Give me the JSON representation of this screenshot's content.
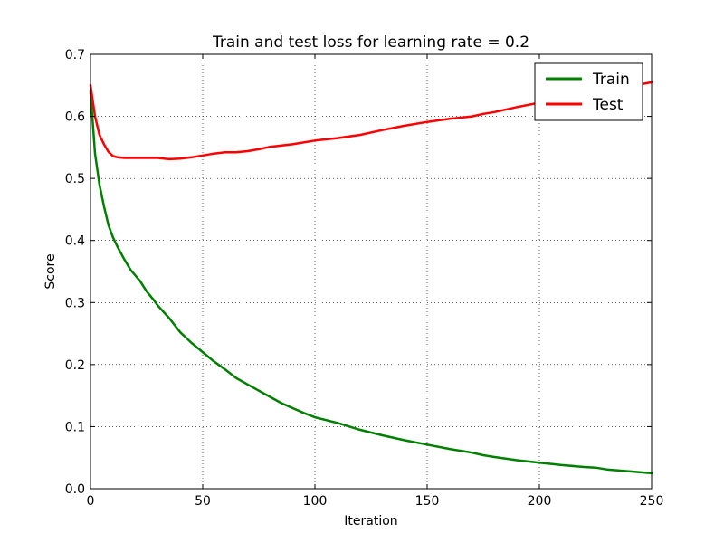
{
  "chart_data": {
    "type": "line",
    "title": "Train and test loss for learning rate = 0.2",
    "xlabel": "Iteration",
    "ylabel": "Score",
    "xlim": [
      0,
      250
    ],
    "ylim": [
      0,
      0.7
    ],
    "xticks": [
      0,
      50,
      100,
      150,
      200,
      250
    ],
    "yticks": [
      0.0,
      0.1,
      0.2,
      0.3,
      0.4,
      0.5,
      0.6,
      0.7
    ],
    "xtick_labels": [
      "0",
      "50",
      "100",
      "150",
      "200",
      "250"
    ],
    "ytick_labels": [
      "0.0",
      "0.1",
      "0.2",
      "0.3",
      "0.4",
      "0.5",
      "0.6",
      "0.7"
    ],
    "grid": true,
    "legend_position": "top-right",
    "series": [
      {
        "name": "Train",
        "color": "#008000",
        "x": [
          0,
          2,
          4,
          6,
          8,
          10,
          12,
          15,
          18,
          22,
          25,
          28,
          30,
          35,
          40,
          45,
          50,
          55,
          60,
          65,
          70,
          75,
          80,
          85,
          90,
          95,
          100,
          110,
          120,
          130,
          140,
          150,
          160,
          170,
          175,
          180,
          190,
          200,
          210,
          220,
          225,
          230,
          240,
          250
        ],
        "y": [
          0.64,
          0.54,
          0.49,
          0.455,
          0.425,
          0.405,
          0.39,
          0.37,
          0.352,
          0.335,
          0.318,
          0.305,
          0.295,
          0.275,
          0.252,
          0.235,
          0.22,
          0.205,
          0.192,
          0.178,
          0.168,
          0.158,
          0.148,
          0.138,
          0.13,
          0.122,
          0.115,
          0.106,
          0.095,
          0.086,
          0.078,
          0.071,
          0.064,
          0.058,
          0.054,
          0.051,
          0.046,
          0.042,
          0.038,
          0.035,
          0.034,
          0.031,
          0.028,
          0.025
        ]
      },
      {
        "name": "Test",
        "color": "#ff0000",
        "x": [
          0,
          2,
          4,
          6,
          8,
          10,
          12,
          15,
          20,
          25,
          30,
          35,
          40,
          45,
          50,
          55,
          60,
          65,
          70,
          75,
          80,
          90,
          100,
          110,
          120,
          130,
          140,
          150,
          160,
          170,
          175,
          180,
          190,
          200,
          210,
          220,
          225,
          230,
          240,
          250
        ],
        "y": [
          0.65,
          0.6,
          0.57,
          0.555,
          0.543,
          0.536,
          0.534,
          0.533,
          0.533,
          0.533,
          0.533,
          0.531,
          0.532,
          0.534,
          0.537,
          0.54,
          0.542,
          0.542,
          0.544,
          0.547,
          0.551,
          0.555,
          0.561,
          0.565,
          0.57,
          0.578,
          0.585,
          0.591,
          0.596,
          0.6,
          0.604,
          0.607,
          0.615,
          0.622,
          0.628,
          0.635,
          0.637,
          0.64,
          0.648,
          0.655
        ]
      }
    ]
  }
}
